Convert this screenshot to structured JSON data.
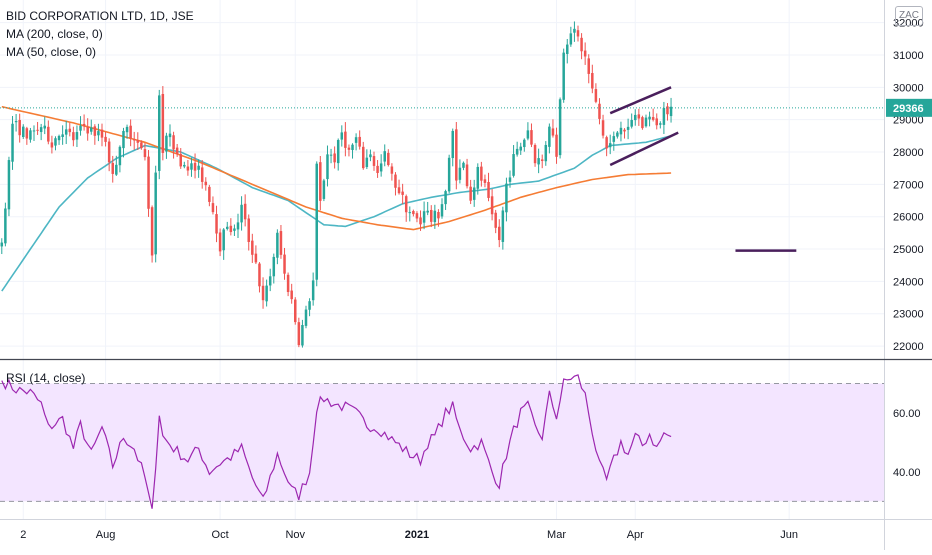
{
  "header": {
    "symbol_line": "BID CORPORATION LTD, 1D, JSE",
    "ma200_label": "MA (200, close, 0)",
    "ma50_label": "MA (50, close, 0)",
    "currency": "ZAC"
  },
  "rsi_panel": {
    "label": "RSI (14, close)",
    "upper_band": 70,
    "lower_band": 30,
    "y_range": [
      24,
      78
    ],
    "ticks": [
      {
        "value": 60,
        "label": "60.00"
      },
      {
        "value": 40,
        "label": "40.00"
      }
    ],
    "colors": {
      "line": "#9c27b0",
      "fill": "#f3e5ff",
      "band": "#9598a1"
    }
  },
  "chart_data": {
    "type": "candlestick",
    "interval": "1D",
    "x_axis": {
      "ticks": [
        {
          "label": "2",
          "index": 6,
          "bold": false
        },
        {
          "label": "Aug",
          "index": 29,
          "bold": false
        },
        {
          "label": "Oct",
          "index": 61,
          "bold": false
        },
        {
          "label": "Nov",
          "index": 82,
          "bold": false
        },
        {
          "label": "2021",
          "index": 116,
          "bold": true
        },
        {
          "label": "Mar",
          "index": 155,
          "bold": false
        },
        {
          "label": "Apr",
          "index": 177,
          "bold": false
        },
        {
          "label": "Jun",
          "index": 220,
          "bold": false
        }
      ],
      "total_slots": 247
    },
    "y_axis": {
      "range": [
        21600,
        32700
      ],
      "ticks": [
        22000,
        23000,
        24000,
        25000,
        26000,
        27000,
        28000,
        29000,
        30000,
        31000,
        32000
      ]
    },
    "last_price": 29366,
    "last_price_label": "29366",
    "colors": {
      "up": "#26a69a",
      "down": "#ef5350",
      "ma50": "#4db6c4",
      "ma200": "#f57c34",
      "drawings": "#4a1f5c",
      "price_line": "#26a69a"
    },
    "close_anchors": [
      [
        0,
        25200
      ],
      [
        3,
        28900
      ],
      [
        5,
        28700
      ],
      [
        8,
        28500
      ],
      [
        11,
        28800
      ],
      [
        14,
        28300
      ],
      [
        17,
        28700
      ],
      [
        20,
        28400
      ],
      [
        23,
        28800
      ],
      [
        26,
        28600
      ],
      [
        29,
        28400
      ],
      [
        31,
        27200
      ],
      [
        33,
        28300
      ],
      [
        35,
        28700
      ],
      [
        37,
        28500
      ],
      [
        40,
        27800
      ],
      [
        42,
        24900
      ],
      [
        44,
        29900
      ],
      [
        45,
        28000
      ],
      [
        47,
        28700
      ],
      [
        49,
        27800
      ],
      [
        52,
        27600
      ],
      [
        55,
        27400
      ],
      [
        57,
        27000
      ],
      [
        59,
        26200
      ],
      [
        61,
        25100
      ],
      [
        63,
        25800
      ],
      [
        65,
        25500
      ],
      [
        67,
        26300
      ],
      [
        69,
        25300
      ],
      [
        71,
        24600
      ],
      [
        73,
        23300
      ],
      [
        75,
        24200
      ],
      [
        77,
        25400
      ],
      [
        79,
        24200
      ],
      [
        81,
        23400
      ],
      [
        83,
        22200
      ],
      [
        85,
        23000
      ],
      [
        87,
        24000
      ],
      [
        88,
        27500
      ],
      [
        89,
        26400
      ],
      [
        91,
        28000
      ],
      [
        93,
        27800
      ],
      [
        95,
        28600
      ],
      [
        97,
        28000
      ],
      [
        99,
        28400
      ],
      [
        101,
        27600
      ],
      [
        103,
        28000
      ],
      [
        105,
        27300
      ],
      [
        107,
        27900
      ],
      [
        109,
        27200
      ],
      [
        111,
        26800
      ],
      [
        113,
        26300
      ],
      [
        115,
        26000
      ],
      [
        117,
        25800
      ],
      [
        118,
        26300
      ],
      [
        120,
        25900
      ],
      [
        122,
        26100
      ],
      [
        124,
        26800
      ],
      [
        126,
        28600
      ],
      [
        127,
        27300
      ],
      [
        129,
        27600
      ],
      [
        131,
        26600
      ],
      [
        133,
        27400
      ],
      [
        135,
        26900
      ],
      [
        137,
        25900
      ],
      [
        139,
        25300
      ],
      [
        141,
        27000
      ],
      [
        143,
        27800
      ],
      [
        145,
        28200
      ],
      [
        147,
        28700
      ],
      [
        149,
        27800
      ],
      [
        151,
        27700
      ],
      [
        153,
        28900
      ],
      [
        155,
        28000
      ],
      [
        157,
        31200
      ],
      [
        159,
        31800
      ],
      [
        161,
        31500
      ],
      [
        163,
        30900
      ],
      [
        165,
        29900
      ],
      [
        167,
        29000
      ],
      [
        169,
        28100
      ],
      [
        171,
        28400
      ],
      [
        173,
        28900
      ],
      [
        175,
        28600
      ],
      [
        177,
        29200
      ],
      [
        179,
        28800
      ],
      [
        181,
        29200
      ],
      [
        183,
        28700
      ],
      [
        185,
        29300
      ],
      [
        187,
        29400
      ]
    ],
    "ma200_anchors": [
      [
        0,
        29400
      ],
      [
        20,
        28900
      ],
      [
        40,
        28300
      ],
      [
        55,
        27700
      ],
      [
        70,
        27000
      ],
      [
        85,
        26300
      ],
      [
        95,
        25950
      ],
      [
        105,
        25750
      ],
      [
        115,
        25600
      ],
      [
        125,
        25850
      ],
      [
        135,
        26200
      ],
      [
        145,
        26600
      ],
      [
        155,
        26900
      ],
      [
        165,
        27150
      ],
      [
        175,
        27300
      ],
      [
        187,
        27350
      ]
    ],
    "ma50_anchors": [
      [
        0,
        23700
      ],
      [
        8,
        25000
      ],
      [
        16,
        26300
      ],
      [
        24,
        27200
      ],
      [
        32,
        27800
      ],
      [
        40,
        28200
      ],
      [
        50,
        28000
      ],
      [
        60,
        27500
      ],
      [
        70,
        26900
      ],
      [
        80,
        26500
      ],
      [
        90,
        25750
      ],
      [
        96,
        25700
      ],
      [
        104,
        26000
      ],
      [
        112,
        26400
      ],
      [
        120,
        26600
      ],
      [
        128,
        26750
      ],
      [
        136,
        26850
      ],
      [
        142,
        27000
      ],
      [
        150,
        27100
      ],
      [
        155,
        27300
      ],
      [
        160,
        27500
      ],
      [
        165,
        27900
      ],
      [
        170,
        28200
      ],
      [
        180,
        28300
      ],
      [
        187,
        28500
      ]
    ],
    "rsi_anchors": [
      [
        0,
        71
      ],
      [
        4,
        68
      ],
      [
        8,
        67
      ],
      [
        11,
        63
      ],
      [
        13,
        55
      ],
      [
        17,
        58
      ],
      [
        20,
        48
      ],
      [
        22,
        56
      ],
      [
        25,
        46
      ],
      [
        28,
        55
      ],
      [
        31,
        42
      ],
      [
        34,
        52
      ],
      [
        37,
        48
      ],
      [
        40,
        38
      ],
      [
        42,
        26
      ],
      [
        44,
        60
      ],
      [
        45,
        52
      ],
      [
        48,
        48
      ],
      [
        52,
        44
      ],
      [
        55,
        48
      ],
      [
        58,
        40
      ],
      [
        61,
        43
      ],
      [
        64,
        45
      ],
      [
        67,
        48
      ],
      [
        70,
        38
      ],
      [
        73,
        30
      ],
      [
        75,
        38
      ],
      [
        77,
        46
      ],
      [
        79,
        40
      ],
      [
        81,
        34
      ],
      [
        83,
        32
      ],
      [
        86,
        40
      ],
      [
        88,
        62
      ],
      [
        90,
        65
      ],
      [
        93,
        63
      ],
      [
        96,
        62
      ],
      [
        99,
        60
      ],
      [
        102,
        56
      ],
      [
        105,
        55
      ],
      [
        108,
        52
      ],
      [
        111,
        49
      ],
      [
        114,
        46
      ],
      [
        117,
        44
      ],
      [
        119,
        50
      ],
      [
        121,
        52
      ],
      [
        124,
        60
      ],
      [
        126,
        62
      ],
      [
        128,
        54
      ],
      [
        131,
        48
      ],
      [
        134,
        50
      ],
      [
        137,
        40
      ],
      [
        139,
        36
      ],
      [
        141,
        46
      ],
      [
        143,
        54
      ],
      [
        145,
        60
      ],
      [
        147,
        62
      ],
      [
        149,
        55
      ],
      [
        151,
        52
      ],
      [
        153,
        66
      ],
      [
        155,
        59
      ],
      [
        157,
        70
      ],
      [
        159,
        72
      ],
      [
        161,
        72
      ],
      [
        163,
        66
      ],
      [
        165,
        54
      ],
      [
        167,
        42
      ],
      [
        169,
        37
      ],
      [
        171,
        44
      ],
      [
        173,
        50
      ],
      [
        175,
        46
      ],
      [
        177,
        52
      ],
      [
        179,
        49
      ],
      [
        181,
        53
      ],
      [
        183,
        48
      ],
      [
        185,
        53
      ],
      [
        187,
        52
      ]
    ],
    "drawings": {
      "channel_upper": [
        [
          170,
          29200
        ],
        [
          187,
          30000
        ]
      ],
      "channel_lower": [
        [
          170,
          27600
        ],
        [
          189,
          28600
        ]
      ],
      "target_line": [
        [
          205,
          24950
        ],
        [
          222,
          24950
        ]
      ]
    }
  }
}
